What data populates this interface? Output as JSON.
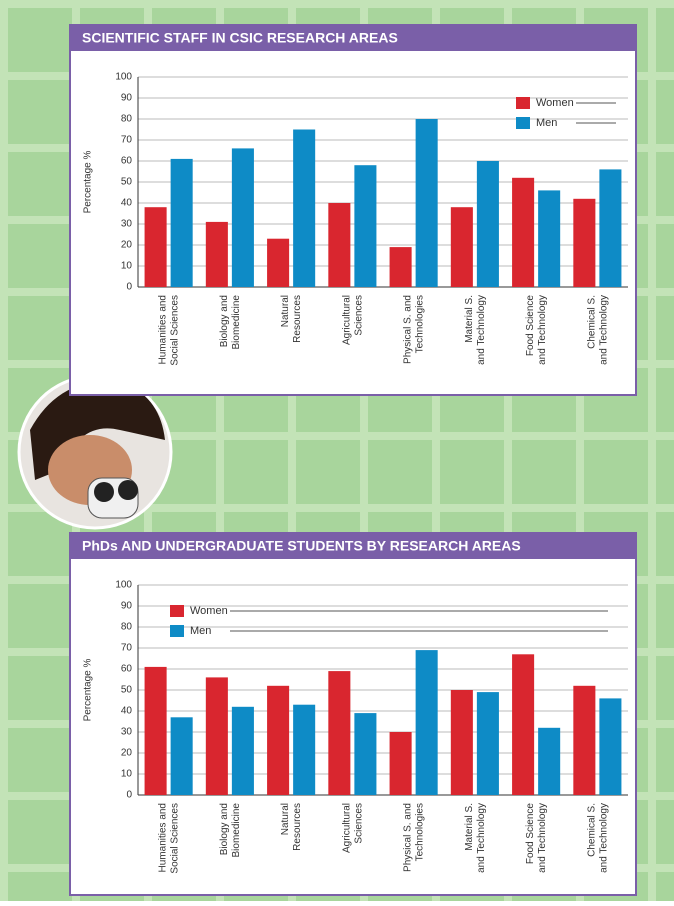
{
  "chart_data": [
    {
      "type": "bar",
      "title": "SCIENTIFIC STAFF IN CSIC RESEARCH AREAS",
      "ylabel": "Percentage %",
      "categories": [
        "Humanities and\nSocial Sciences",
        "Biology and\nBiomedicine",
        "Natural\nResources",
        "Agricultural\nSciences",
        "Physical S. and\nTechnologies",
        "Material S.\nand Technology",
        "Food Science\nand Technology",
        "Chemical S.\nand Technology"
      ],
      "series": [
        {
          "name": "Women",
          "color": "#d9262f",
          "values": [
            38,
            31,
            23,
            40,
            19,
            38,
            52,
            42
          ]
        },
        {
          "name": "Men",
          "color": "#0e8bc6",
          "values": [
            61,
            66,
            75,
            58,
            80,
            60,
            46,
            56
          ]
        }
      ],
      "ylim": [
        0,
        100
      ],
      "yticks": [
        0,
        10,
        20,
        30,
        40,
        50,
        60,
        70,
        80,
        90,
        100
      ],
      "grid": true,
      "legend": "upper right"
    },
    {
      "type": "bar",
      "title": "PhDs AND UNDERGRADUATE STUDENTS BY RESEARCH AREAS",
      "ylabel": "Percentage %",
      "categories": [
        "Humanities and\nSocial Sciences",
        "Biology and\nBiomedicine",
        "Natural\nResources",
        "Agricultural\nSciences",
        "Physical S. and\nTechnologies",
        "Material S.\nand Technology",
        "Food Science\nand Technology",
        "Chemical S.\nand Technology"
      ],
      "series": [
        {
          "name": "Women",
          "color": "#d9262f",
          "values": [
            61,
            56,
            52,
            59,
            30,
            50,
            67,
            52
          ]
        },
        {
          "name": "Men",
          "color": "#0e8bc6",
          "values": [
            37,
            42,
            43,
            39,
            69,
            49,
            32,
            46
          ]
        }
      ],
      "ylim": [
        0,
        100
      ],
      "yticks": [
        0,
        10,
        20,
        30,
        40,
        50,
        60,
        70,
        80,
        90,
        100
      ],
      "grid": true,
      "legend": "upper left"
    }
  ]
}
